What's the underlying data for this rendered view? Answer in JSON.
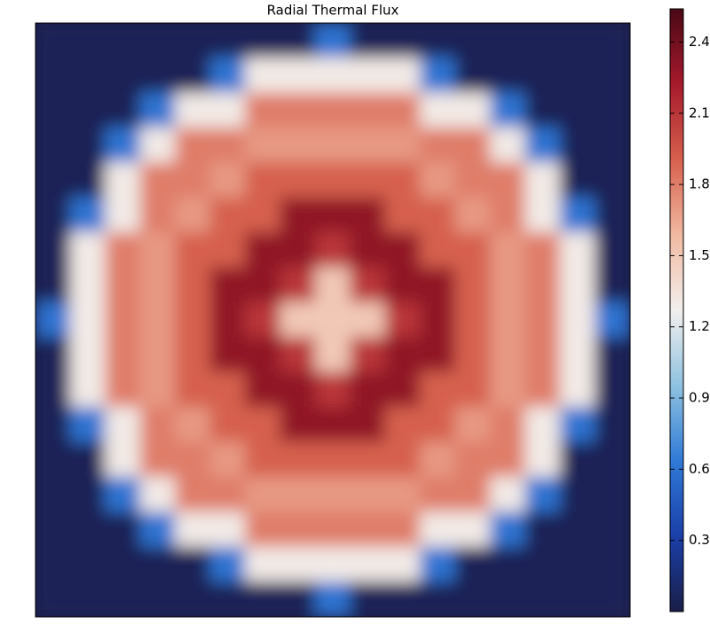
{
  "chart_data": {
    "type": "heatmap",
    "title": "Radial Thermal Flux",
    "z": [
      [
        0.05,
        0.05,
        0.05,
        0.05,
        0.05,
        0.05,
        0.05,
        0.05,
        0.6,
        0.05,
        0.05,
        0.05,
        0.05,
        0.05,
        0.05,
        0.05,
        0.05
      ],
      [
        0.05,
        0.05,
        0.05,
        0.05,
        0.05,
        0.6,
        1.3,
        1.3,
        1.3,
        1.3,
        1.3,
        0.6,
        0.05,
        0.05,
        0.05,
        0.05,
        0.05
      ],
      [
        0.05,
        0.05,
        0.05,
        0.6,
        1.3,
        1.3,
        1.8,
        1.8,
        1.8,
        1.8,
        1.8,
        1.3,
        1.3,
        0.6,
        0.05,
        0.05,
        0.05
      ],
      [
        0.05,
        0.05,
        0.6,
        1.3,
        1.8,
        1.8,
        1.7,
        1.7,
        1.7,
        1.7,
        1.7,
        1.8,
        1.8,
        1.3,
        0.6,
        0.05,
        0.05
      ],
      [
        0.05,
        0.05,
        1.3,
        1.8,
        1.8,
        1.7,
        1.9,
        1.9,
        1.9,
        1.9,
        1.9,
        1.7,
        1.8,
        1.8,
        1.3,
        0.05,
        0.05
      ],
      [
        0.05,
        0.6,
        1.3,
        1.8,
        1.7,
        1.9,
        1.9,
        2.3,
        2.3,
        2.3,
        1.9,
        1.9,
        1.7,
        1.8,
        1.3,
        0.6,
        0.05
      ],
      [
        0.05,
        1.3,
        1.8,
        1.7,
        1.9,
        1.9,
        2.3,
        2.3,
        2.1,
        2.3,
        2.3,
        1.9,
        1.9,
        1.7,
        1.8,
        1.3,
        0.05
      ],
      [
        0.05,
        1.3,
        1.8,
        1.7,
        1.9,
        2.3,
        2.3,
        2.1,
        1.5,
        2.1,
        2.3,
        2.3,
        1.9,
        1.7,
        1.8,
        1.3,
        0.05
      ],
      [
        0.6,
        1.3,
        1.8,
        1.7,
        1.9,
        2.3,
        2.1,
        1.5,
        1.5,
        1.5,
        2.1,
        2.3,
        1.9,
        1.7,
        1.8,
        1.3,
        0.6
      ],
      [
        0.05,
        1.3,
        1.8,
        1.7,
        1.9,
        2.3,
        2.3,
        2.1,
        1.5,
        2.1,
        2.3,
        2.3,
        1.9,
        1.7,
        1.8,
        1.3,
        0.05
      ],
      [
        0.05,
        1.3,
        1.8,
        1.7,
        1.9,
        1.9,
        2.3,
        2.3,
        2.1,
        2.3,
        2.3,
        1.9,
        1.9,
        1.7,
        1.8,
        1.3,
        0.05
      ],
      [
        0.05,
        0.6,
        1.3,
        1.8,
        1.7,
        1.9,
        1.9,
        2.3,
        2.3,
        2.3,
        1.9,
        1.9,
        1.7,
        1.8,
        1.3,
        0.6,
        0.05
      ],
      [
        0.05,
        0.05,
        1.3,
        1.8,
        1.8,
        1.7,
        1.9,
        1.9,
        1.9,
        1.9,
        1.9,
        1.7,
        1.8,
        1.8,
        1.3,
        0.05,
        0.05
      ],
      [
        0.05,
        0.05,
        0.6,
        1.3,
        1.8,
        1.8,
        1.7,
        1.7,
        1.7,
        1.7,
        1.7,
        1.8,
        1.8,
        1.3,
        0.6,
        0.05,
        0.05
      ],
      [
        0.05,
        0.05,
        0.05,
        0.6,
        1.3,
        1.3,
        1.8,
        1.8,
        1.8,
        1.8,
        1.8,
        1.3,
        1.3,
        0.6,
        0.05,
        0.05,
        0.05
      ],
      [
        0.05,
        0.05,
        0.05,
        0.05,
        0.05,
        0.6,
        1.3,
        1.3,
        1.3,
        1.3,
        1.3,
        0.6,
        0.05,
        0.05,
        0.05,
        0.05,
        0.05
      ],
      [
        0.05,
        0.05,
        0.05,
        0.05,
        0.05,
        0.05,
        0.05,
        0.05,
        0.6,
        0.05,
        0.05,
        0.05,
        0.05,
        0.05,
        0.05,
        0.05,
        0.05
      ]
    ],
    "clim": [
      0,
      2.54
    ],
    "cticks": [
      0.3,
      0.6,
      0.9,
      1.2,
      1.5,
      1.8,
      2.1,
      2.4
    ],
    "colormap": [
      "#1a1e48",
      "#1b3fa8",
      "#2f7ad6",
      "#8fc2e0",
      "#f2efed",
      "#f1b9a1",
      "#d6604d",
      "#a61a2c",
      "#4a0815"
    ]
  }
}
